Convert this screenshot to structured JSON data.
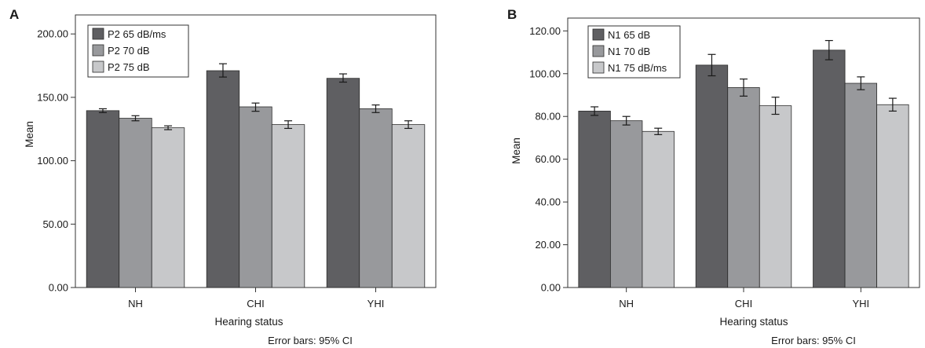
{
  "chart_data": [
    {
      "type": "bar",
      "panel_label": "A",
      "categories": [
        "NH",
        "CHI",
        "YHI"
      ],
      "series": [
        {
          "name": "P2 65 dB/ms",
          "color": "#5f5f62",
          "values": [
            139.5,
            171,
            165
          ],
          "ci_low": [
            138,
            166,
            162
          ],
          "ci_high": [
            141,
            176.5,
            168.5
          ]
        },
        {
          "name": "P2 70 dB",
          "color": "#98999c",
          "values": [
            133.5,
            142.5,
            141
          ],
          "ci_low": [
            131.5,
            139,
            138
          ],
          "ci_high": [
            135.5,
            145.5,
            144
          ]
        },
        {
          "name": "P2 75 dB",
          "color": "#c7c8ca",
          "values": [
            126,
            128.5,
            128.5
          ],
          "ci_low": [
            124.5,
            125.5,
            125.5
          ],
          "ci_high": [
            127.5,
            131.5,
            131.5
          ]
        }
      ],
      "ylabel": "Mean",
      "xlabel": "Hearing status",
      "ylim": [
        0,
        215
      ],
      "yticks": [
        "0.00",
        "50.00",
        "100.00",
        "150.00",
        "200.00"
      ],
      "ytick_values": [
        0,
        50,
        100,
        150,
        200
      ],
      "legend_position": "top-left",
      "grid": false,
      "note": "Error bars: 95% CI"
    },
    {
      "type": "bar",
      "panel_label": "B",
      "categories": [
        "NH",
        "CHI",
        "YHI"
      ],
      "series": [
        {
          "name": "N1 65 dB",
          "color": "#5f5f62",
          "values": [
            82.5,
            104,
            111
          ],
          "ci_low": [
            80.5,
            99,
            106.5
          ],
          "ci_high": [
            84.5,
            109,
            115.5
          ]
        },
        {
          "name": "N1 70 dB",
          "color": "#98999c",
          "values": [
            78,
            93.5,
            95.5
          ],
          "ci_low": [
            76,
            89.5,
            92.5
          ],
          "ci_high": [
            80,
            97.5,
            98.5
          ]
        },
        {
          "name": "N1 75 dB/ms",
          "color": "#c7c8ca",
          "values": [
            73,
            85,
            85.5
          ],
          "ci_low": [
            71.5,
            81,
            82.5
          ],
          "ci_high": [
            74.5,
            89,
            88.5
          ]
        }
      ],
      "ylabel": "Mean",
      "xlabel": "Hearing status",
      "ylim": [
        0,
        126
      ],
      "yticks": [
        "0.00",
        "20.00",
        "40.00",
        "60.00",
        "80.00",
        "100.00",
        "120.00"
      ],
      "ytick_values": [
        0,
        20,
        40,
        60,
        80,
        100,
        120
      ],
      "legend_position": "top-left",
      "grid": false,
      "note": "Error bars: 95% CI"
    }
  ]
}
